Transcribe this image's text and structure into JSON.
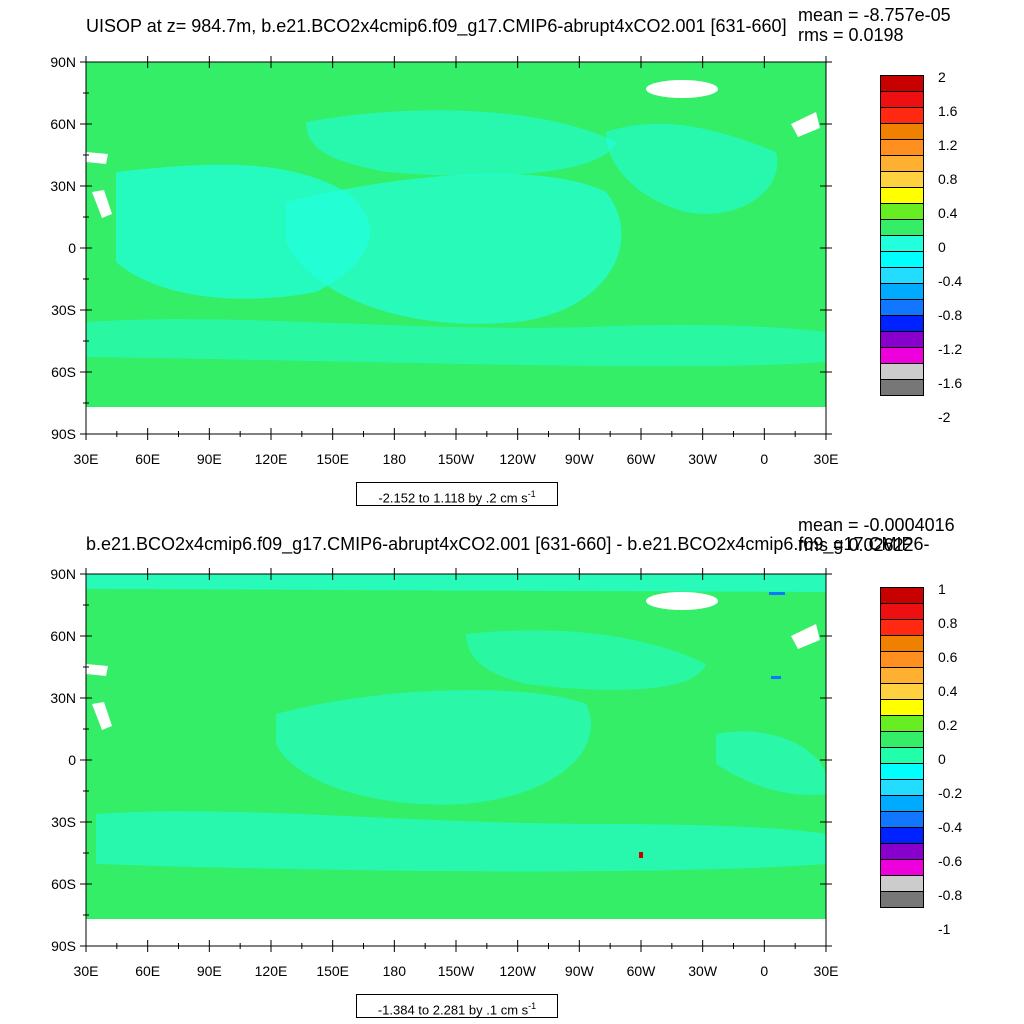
{
  "panels": [
    {
      "id": "top",
      "title": "UISOP at z= 984.7m, b.e21.BCO2x4cmip6.f09_g17.CMIP6-abrupt4xCO2.001 [631-660]",
      "mean_text": "mean = -8.757e-05",
      "rms_text": "rms = 0.0198",
      "range_prefix": "-2.152 to 1.118 by .2 cm s",
      "range_sup": "-1",
      "colorbar_labels": [
        "2",
        "1.6",
        "1.2",
        "0.8",
        "0.4",
        "0",
        "-0.4",
        "-0.8",
        "-1.2",
        "-1.6",
        "-2"
      ]
    },
    {
      "id": "bottom",
      "title": "b.e21.BCO2x4cmip6.f09_g17.CMIP6-abrupt4xCO2.001 [631-660] - b.e21.BCO2x4cmip6.f09_g17.CMIP6-",
      "mean_text": "mean = -0.0004016",
      "rms_text": "rms = 0.02622",
      "range_prefix": "-1.384 to 2.281 by .1 cm s",
      "range_sup": "-1",
      "colorbar_labels": [
        "1",
        "0.8",
        "0.6",
        "0.4",
        "0.2",
        "0",
        "-0.2",
        "-0.4",
        "-0.6",
        "-0.8",
        "-1"
      ]
    }
  ],
  "lat_labels": [
    "90N",
    "60N",
    "30N",
    "0",
    "30S",
    "60S",
    "90S"
  ],
  "lon_labels": [
    "30E",
    "60E",
    "90E",
    "120E",
    "150E",
    "180",
    "150W",
    "120W",
    "90W",
    "60W",
    "30W",
    "0",
    "30E"
  ],
  "colors": {
    "land_green": "#33ee66",
    "ocean_cyan": "#22ffdd",
    "ice_white": "#ffffff",
    "palette": [
      "#c80000",
      "#ee1010",
      "#ff2810",
      "#f08000",
      "#ff9020",
      "#ffb030",
      "#ffd040",
      "#ffff00",
      "#66ee22",
      "#33ee66",
      "#22ffaa",
      "#00ffff",
      "#22ddff",
      "#00aaff",
      "#1177ff",
      "#0022ff",
      "#8800cc",
      "#ee00dd",
      "#cccccc",
      "#777777"
    ]
  }
}
